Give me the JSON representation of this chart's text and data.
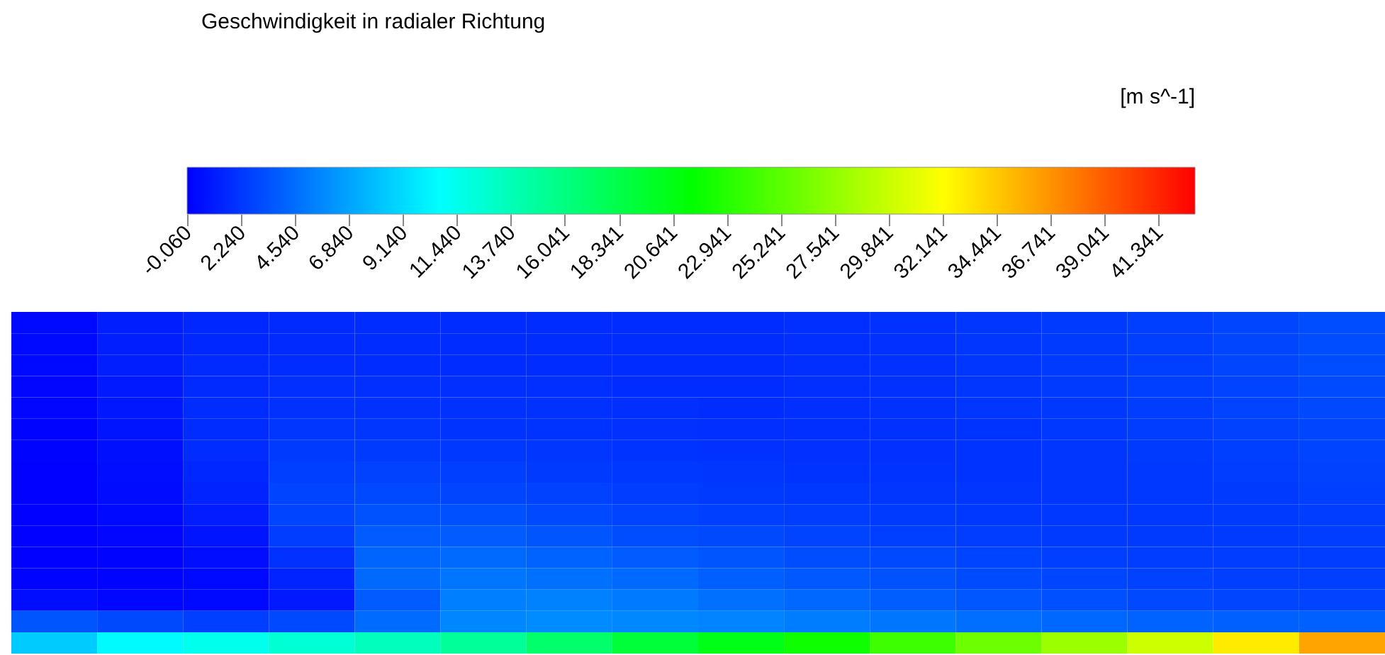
{
  "chart_data": {
    "type": "heatmap",
    "title": "Geschwindigkeit in radialer Richtung",
    "clabel": "[m s^-1]",
    "clim": [
      -0.06,
      42.9
    ],
    "cticks": [
      {
        "value": -0.06,
        "label": "-0.060"
      },
      {
        "value": 2.24,
        "label": "2.240"
      },
      {
        "value": 4.54,
        "label": "4.540"
      },
      {
        "value": 6.84,
        "label": "6.840"
      },
      {
        "value": 9.14,
        "label": "9.140"
      },
      {
        "value": 11.44,
        "label": "11.440"
      },
      {
        "value": 13.74,
        "label": "13.740"
      },
      16.041,
      18.341,
      20.641,
      22.941,
      25.241,
      27.541,
      29.841,
      32.141,
      34.441,
      36.741,
      39.041,
      41.341
    ],
    "categories": [
      null,
      null,
      null,
      null,
      null,
      null,
      null,
      null,
      null,
      null,
      null,
      null,
      null,
      null,
      null,
      null
    ],
    "y_categories": [
      null,
      null,
      null,
      null,
      null,
      null,
      null,
      null,
      null,
      null,
      null,
      null,
      null,
      null,
      null,
      null
    ],
    "cells": [
      [
        0.3,
        1.2,
        1.6,
        1.7,
        1.8,
        1.8,
        1.8,
        1.8,
        1.8,
        1.9,
        2.0,
        2.2,
        2.4,
        2.6,
        2.9,
        3.2
      ],
      [
        0.3,
        1.2,
        1.6,
        1.7,
        1.8,
        1.8,
        1.8,
        1.8,
        1.8,
        1.9,
        2.0,
        2.2,
        2.4,
        2.6,
        2.9,
        3.2
      ],
      [
        0.3,
        1.2,
        1.7,
        1.8,
        1.8,
        1.8,
        1.8,
        1.8,
        1.8,
        1.9,
        2.0,
        2.2,
        2.4,
        2.6,
        2.9,
        3.2
      ],
      [
        0.2,
        1.0,
        1.7,
        1.9,
        1.9,
        1.9,
        1.9,
        1.8,
        1.8,
        1.9,
        2.0,
        2.2,
        2.4,
        2.6,
        2.8,
        3.1
      ],
      [
        0.2,
        0.9,
        1.8,
        2.0,
        2.0,
        2.0,
        2.0,
        1.9,
        1.8,
        1.9,
        2.0,
        2.2,
        2.3,
        2.5,
        2.8,
        3.0
      ],
      [
        0.1,
        0.8,
        1.8,
        2.2,
        2.2,
        2.1,
        2.1,
        2.0,
        1.9,
        1.9,
        2.0,
        2.1,
        2.3,
        2.5,
        2.7,
        2.9
      ],
      [
        0.1,
        0.6,
        1.8,
        2.4,
        2.4,
        2.3,
        2.2,
        2.1,
        2.0,
        2.0,
        2.0,
        2.1,
        2.2,
        2.4,
        2.6,
        2.8
      ],
      [
        0.0,
        0.5,
        1.6,
        2.6,
        2.7,
        2.6,
        2.4,
        2.3,
        2.2,
        2.1,
        2.1,
        2.1,
        2.2,
        2.3,
        2.5,
        2.7
      ],
      [
        0.0,
        0.4,
        1.4,
        2.8,
        3.0,
        2.9,
        2.7,
        2.5,
        2.4,
        2.3,
        2.2,
        2.2,
        2.2,
        2.3,
        2.4,
        2.6
      ],
      [
        0.0,
        0.3,
        1.1,
        2.8,
        3.4,
        3.3,
        3.0,
        2.8,
        2.6,
        2.5,
        2.4,
        2.3,
        2.3,
        2.3,
        2.4,
        2.5
      ],
      [
        0.0,
        0.2,
        0.8,
        2.5,
        3.8,
        3.8,
        3.5,
        3.2,
        3.0,
        2.8,
        2.6,
        2.5,
        2.4,
        2.4,
        2.4,
        2.5
      ],
      [
        0.0,
        0.1,
        0.5,
        2.0,
        4.2,
        4.4,
        4.1,
        3.8,
        3.5,
        3.2,
        3.0,
        2.8,
        2.6,
        2.5,
        2.5,
        2.5
      ],
      [
        0.1,
        0.1,
        0.3,
        1.4,
        4.4,
        4.9,
        4.7,
        4.4,
        4.0,
        3.7,
        3.4,
        3.1,
        2.9,
        2.7,
        2.6,
        2.6
      ],
      [
        0.5,
        0.2,
        0.3,
        1.0,
        3.8,
        5.3,
        5.4,
        5.1,
        4.7,
        4.3,
        3.9,
        3.6,
        3.3,
        3.0,
        2.9,
        2.8
      ],
      [
        3.5,
        3.0,
        2.6,
        3.0,
        4.5,
        5.6,
        5.8,
        5.7,
        5.5,
        5.2,
        4.9,
        4.6,
        4.3,
        4.1,
        4.0,
        4.0
      ],
      [
        8.5,
        10.5,
        11.5,
        12.5,
        13.5,
        15,
        17,
        19,
        20.5,
        22,
        24,
        26,
        28,
        30,
        33,
        36
      ]
    ]
  }
}
